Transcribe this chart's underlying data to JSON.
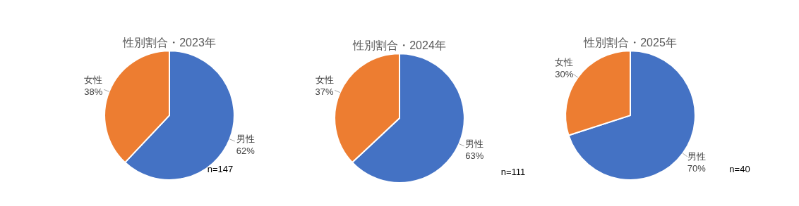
{
  "chart_data": [
    {
      "type": "pie",
      "title": "性別割合・2023年",
      "categories": [
        "男性",
        "女性"
      ],
      "values": [
        62,
        38
      ],
      "colors": [
        "#4472c4",
        "#ed7d31"
      ],
      "value_labels": [
        "62%",
        "38%"
      ],
      "annotations": [
        "n=147"
      ]
    },
    {
      "type": "pie",
      "title": "性別割合・2024年",
      "categories": [
        "男性",
        "女性"
      ],
      "values": [
        63,
        37
      ],
      "colors": [
        "#4472c4",
        "#ed7d31"
      ],
      "value_labels": [
        "63%",
        "37%"
      ],
      "annotations": [
        "n=111"
      ]
    },
    {
      "type": "pie",
      "title": "性別割合・2025年",
      "categories": [
        "男性",
        "女性"
      ],
      "values": [
        70,
        30
      ],
      "colors": [
        "#4472c4",
        "#ed7d31"
      ],
      "value_labels": [
        "70%",
        "30%"
      ],
      "annotations": [
        "n=40"
      ]
    }
  ]
}
